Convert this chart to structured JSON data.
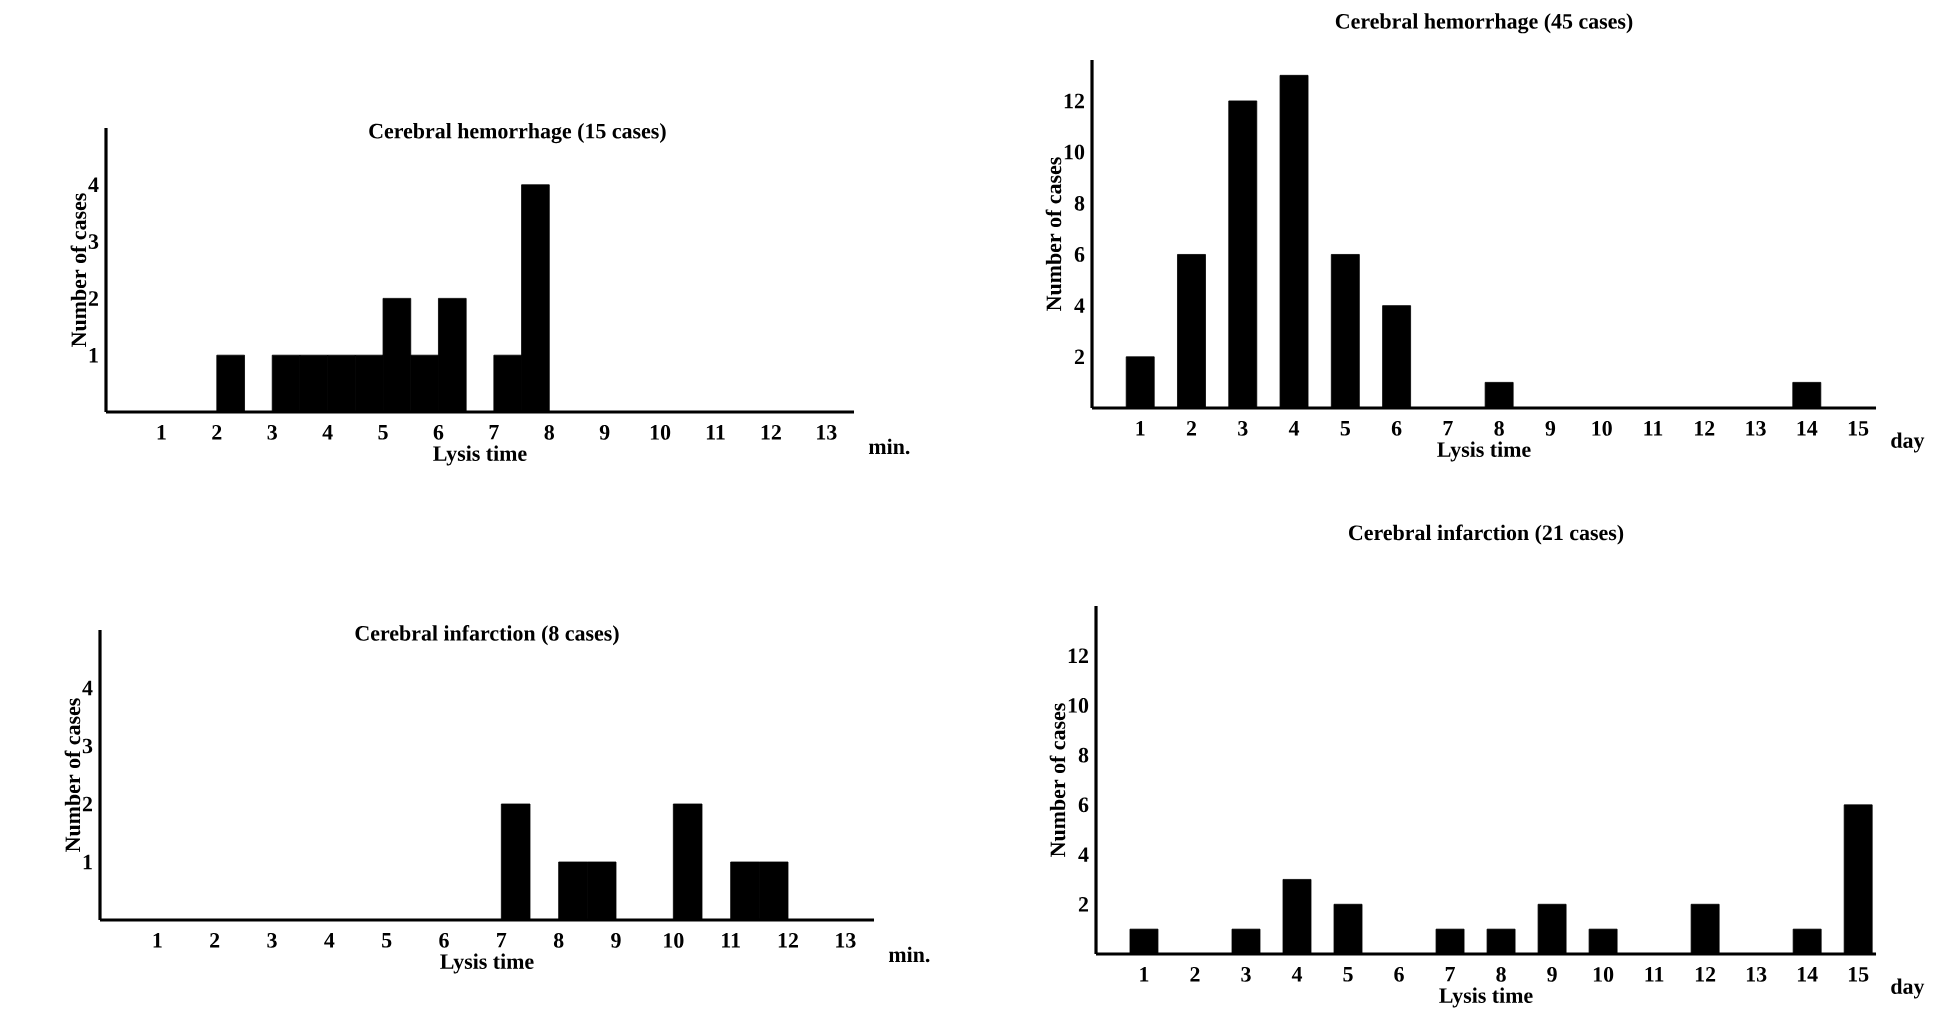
{
  "chart_data": [
    {
      "type": "histogram",
      "title": "Cerebral hemorrhage (15 cases)",
      "xlabel": "Lysis time",
      "ylabel": "Number of cases",
      "bins": [
        2,
        2.5,
        3,
        3.5,
        4,
        4.5,
        5,
        5.5,
        6,
        6.5,
        7,
        7.5,
        8
      ],
      "values": [
        1,
        0,
        1,
        1,
        1,
        1,
        2,
        1,
        2,
        0,
        1,
        4
      ],
      "color": "#000000",
      "xlim": [
        0,
        13.5
      ],
      "ylim": [
        0,
        5
      ],
      "xticks": [
        1,
        2,
        3,
        4,
        5,
        6,
        7,
        8,
        9,
        10,
        11,
        12,
        13
      ],
      "yticks": [
        1,
        2,
        3,
        4
      ],
      "annotations": [
        "min."
      ]
    },
    {
      "type": "bar",
      "title": "Cerebral hemorrhage (45 cases)",
      "xlabel": "Lysis time",
      "ylabel": "Number of cases",
      "categories": [
        "1",
        "2",
        "3",
        "4",
        "5",
        "6",
        "7",
        "8",
        "9",
        "10",
        "11",
        "12",
        "13",
        "14",
        "15"
      ],
      "values": [
        2,
        6,
        12,
        13,
        6,
        4,
        0,
        1,
        0,
        0,
        0,
        0,
        0,
        1,
        0
      ],
      "color": "#000000",
      "ylim": [
        0,
        13.6
      ],
      "yticks": [
        2,
        4,
        6,
        8,
        10,
        12
      ],
      "annotations": [
        "day"
      ]
    },
    {
      "type": "histogram",
      "title": "Cerebral infarction (8 cases)",
      "xlabel": "Lysis time",
      "ylabel": "Number of cases",
      "bins": [
        7,
        7.5,
        8,
        8.5,
        9,
        9.5,
        10,
        10.5,
        11,
        11.5,
        12
      ],
      "values": [
        2,
        0,
        1,
        1,
        0,
        0,
        2,
        0,
        1,
        1
      ],
      "color": "#000000",
      "xlim": [
        0,
        13.5
      ],
      "ylim": [
        0,
        5
      ],
      "xticks": [
        1,
        2,
        3,
        4,
        5,
        6,
        7,
        8,
        9,
        10,
        11,
        12,
        13
      ],
      "yticks": [
        1,
        2,
        3,
        4
      ],
      "annotations": [
        "min."
      ]
    },
    {
      "type": "bar",
      "title": "Cerebral infarction (21 cases)",
      "xlabel": "Lysis time",
      "ylabel": "Number of cases",
      "categories": [
        "1",
        "2",
        "3",
        "4",
        "5",
        "6",
        "7",
        "8",
        "9",
        "10",
        "11",
        "12",
        "13",
        "14",
        "15"
      ],
      "values": [
        1,
        0,
        1,
        3,
        2,
        0,
        1,
        1,
        2,
        1,
        0,
        2,
        0,
        1,
        6
      ],
      "color": "#000000",
      "ylim": [
        0,
        14
      ],
      "yticks": [
        2,
        4,
        6,
        8,
        10,
        12
      ],
      "annotations": [
        "day"
      ]
    }
  ]
}
